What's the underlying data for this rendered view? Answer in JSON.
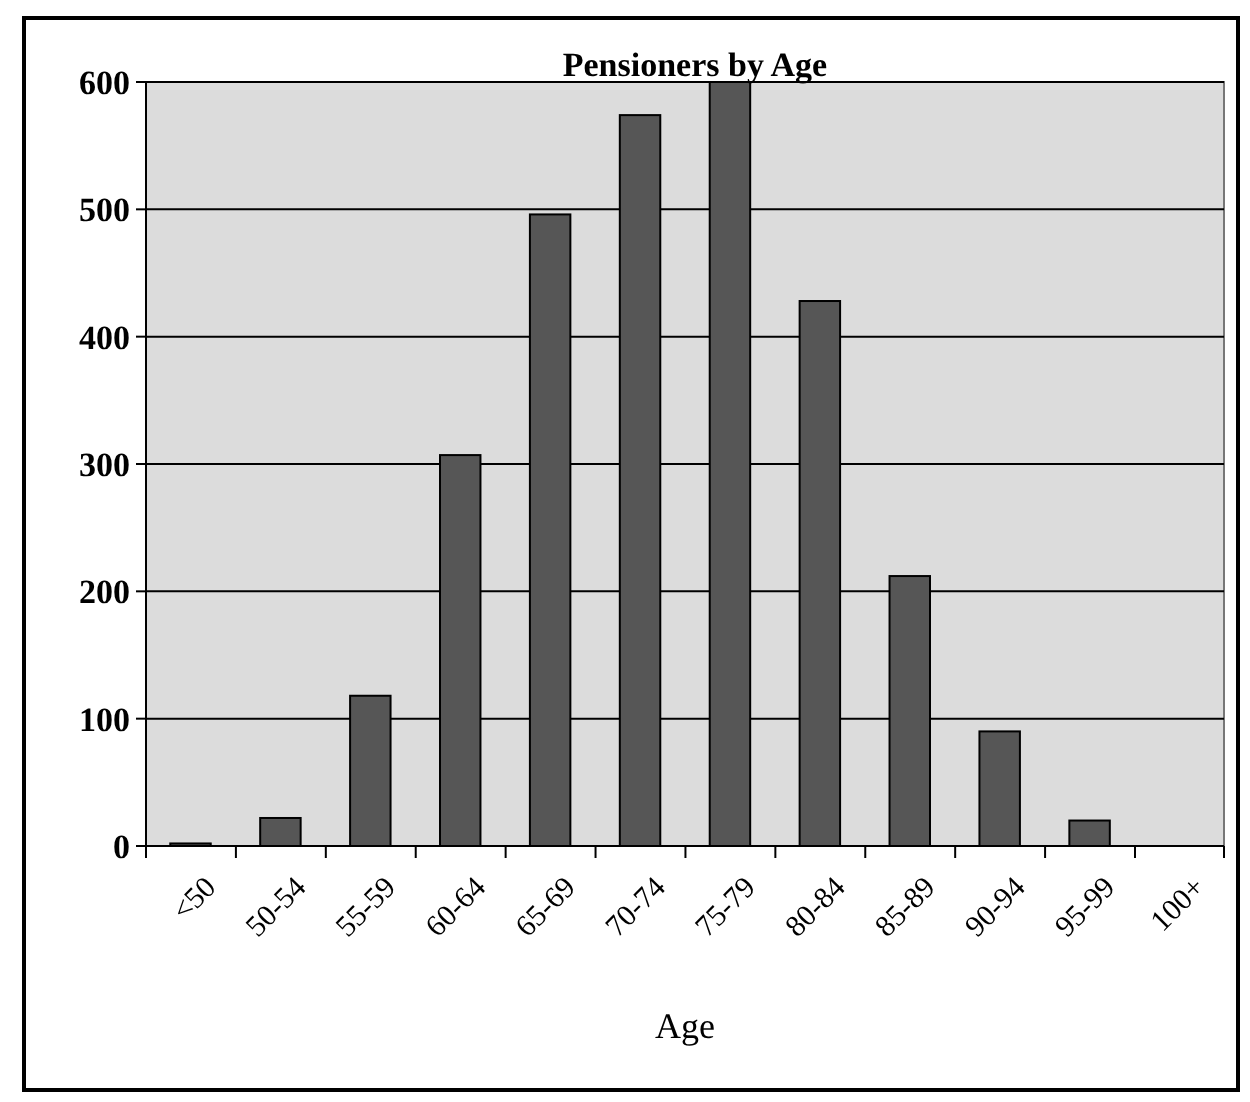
{
  "chart_data": {
    "type": "bar",
    "title": "Pensioners by Age",
    "xlabel": "Age",
    "categories": [
      "<50",
      "50-54",
      "55-59",
      "60-64",
      "65-69",
      "70-74",
      "75-79",
      "80-84",
      "85-89",
      "90-94",
      "95-99",
      "100+"
    ],
    "values": [
      2,
      22,
      118,
      307,
      496,
      574,
      600,
      428,
      212,
      90,
      20,
      0
    ],
    "color": "#565656",
    "ylim": [
      0,
      600
    ],
    "yticks": [
      0,
      100,
      200,
      300,
      400,
      500,
      600
    ],
    "grid": "y"
  }
}
